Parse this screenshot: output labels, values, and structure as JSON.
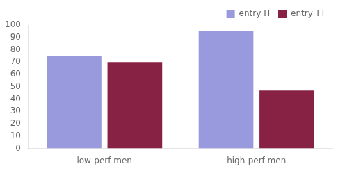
{
  "chart_data": {
    "type": "bar",
    "categories": [
      "low-perf men",
      "high-perf men"
    ],
    "series": [
      {
        "name": "entry IT",
        "color": "#9999dd",
        "values": [
          75,
          95
        ]
      },
      {
        "name": "entry TT",
        "color": "#882244",
        "values": [
          70,
          47
        ]
      }
    ],
    "ylim": [
      0,
      100
    ],
    "yticks": [
      0,
      10,
      20,
      30,
      40,
      50,
      60,
      70,
      80,
      90,
      100
    ],
    "grid": false,
    "legend": "upper right"
  }
}
